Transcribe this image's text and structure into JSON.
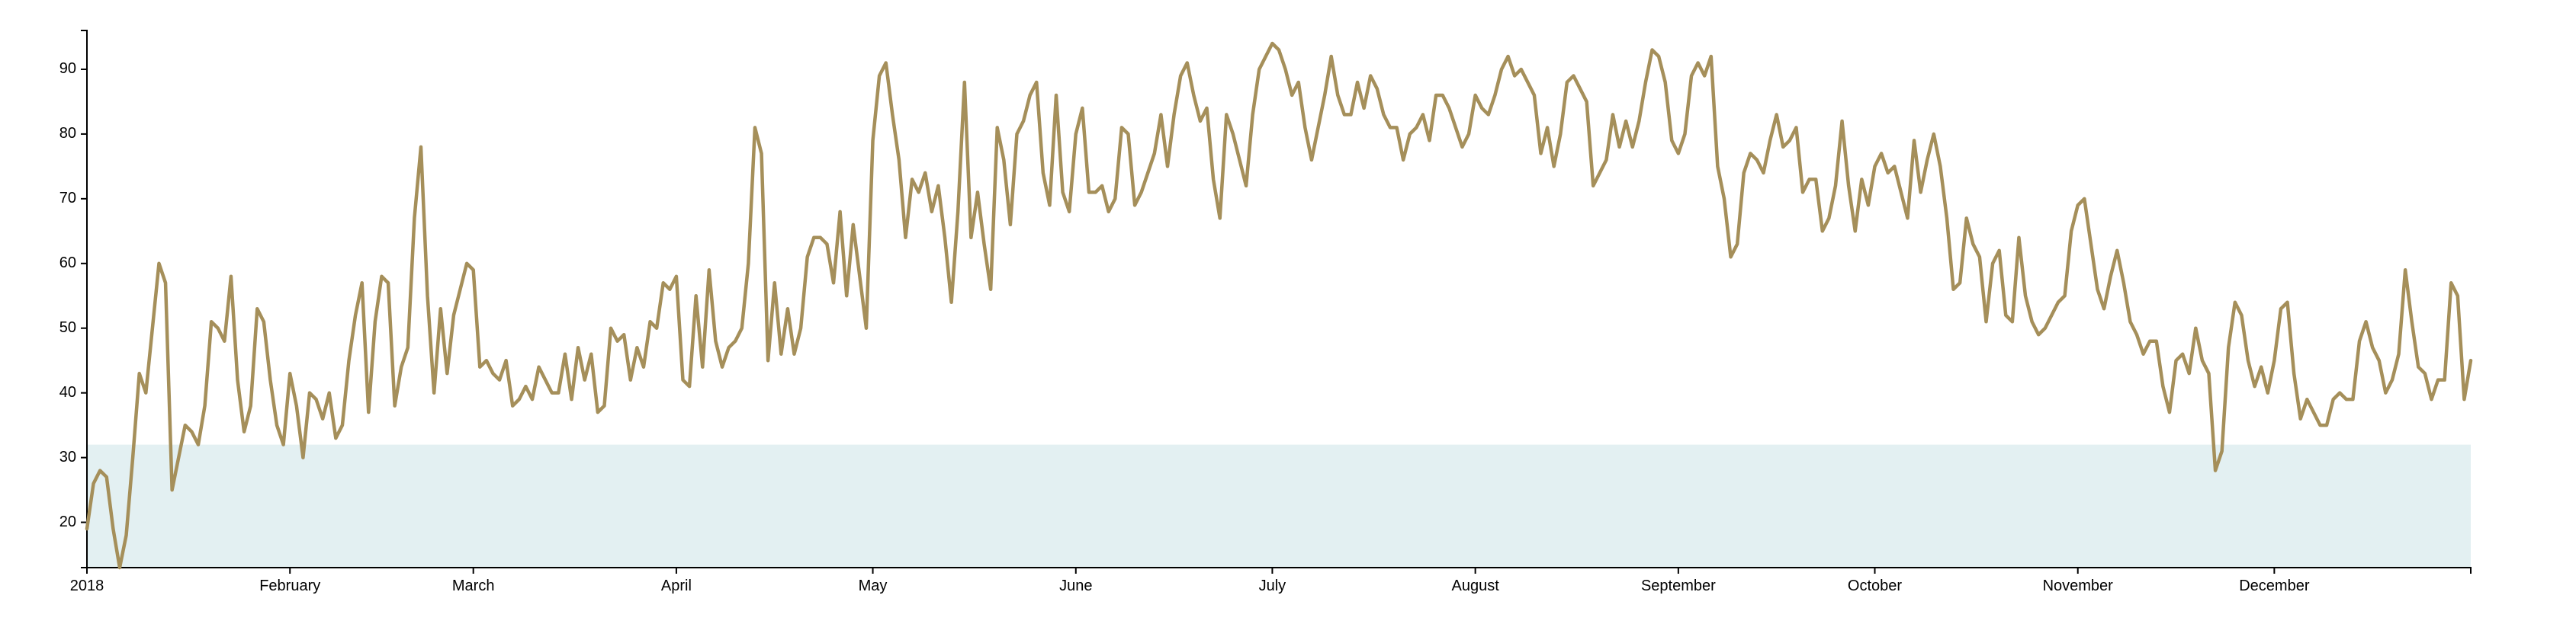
{
  "chart_data": {
    "type": "line",
    "title": "",
    "xlabel": "",
    "ylabel": "",
    "x_domain": [
      "2018-01-01",
      "2018-12-31"
    ],
    "ylim": [
      13,
      96
    ],
    "grid": false,
    "legend": "none",
    "colors": {
      "line": "#A58F5A",
      "band": "#E3F0F2",
      "axis": "#000000"
    },
    "band": {
      "y_from": 13,
      "y_to": 32
    },
    "y_ticks": [
      20,
      30,
      40,
      50,
      60,
      70,
      80,
      90
    ],
    "x_ticks": [
      {
        "date": "2018-01-01",
        "label": "2018"
      },
      {
        "date": "2018-02-01",
        "label": "February"
      },
      {
        "date": "2018-03-01",
        "label": "March"
      },
      {
        "date": "2018-04-01",
        "label": "April"
      },
      {
        "date": "2018-05-01",
        "label": "May"
      },
      {
        "date": "2018-06-01",
        "label": "June"
      },
      {
        "date": "2018-07-01",
        "label": "July"
      },
      {
        "date": "2018-08-01",
        "label": "August"
      },
      {
        "date": "2018-09-01",
        "label": "September"
      },
      {
        "date": "2018-10-01",
        "label": "October"
      },
      {
        "date": "2018-11-01",
        "label": "November"
      },
      {
        "date": "2018-12-01",
        "label": "December"
      }
    ],
    "series": [
      {
        "x_start": "2018-01-01",
        "x_step": "1 day",
        "values": [
          19,
          26,
          28,
          27,
          19,
          13,
          18,
          30,
          43,
          40,
          50,
          60,
          57,
          25,
          30,
          35,
          34,
          32,
          38,
          51,
          50,
          48,
          58,
          42,
          34,
          38,
          53,
          51,
          42,
          35,
          32,
          43,
          38,
          30,
          40,
          39,
          36,
          40,
          33,
          35,
          45,
          52,
          57,
          37,
          51,
          58,
          57,
          38,
          44,
          47,
          67,
          78,
          55,
          40,
          53,
          43,
          52,
          56,
          60,
          59,
          44,
          45,
          43,
          42,
          45,
          38,
          39,
          41,
          39,
          44,
          42,
          40,
          40,
          46,
          39,
          47,
          42,
          46,
          37,
          38,
          50,
          48,
          49,
          42,
          47,
          44,
          51,
          50,
          57,
          56,
          58,
          42,
          41,
          55,
          44,
          59,
          48,
          44,
          47,
          48,
          50,
          60,
          81,
          77,
          45,
          57,
          46,
          53,
          46,
          50,
          61,
          64,
          64,
          63,
          57,
          68,
          55,
          66,
          58,
          50,
          79,
          89,
          91,
          83,
          76,
          64,
          73,
          71,
          74,
          68,
          72,
          64,
          54,
          68,
          88,
          64,
          71,
          63,
          56,
          81,
          76,
          66,
          80,
          82,
          86,
          88,
          74,
          69,
          86,
          71,
          68,
          80,
          84,
          71,
          71,
          72,
          68,
          70,
          81,
          80,
          69,
          71,
          74,
          77,
          83,
          75,
          83,
          89,
          91,
          86,
          82,
          84,
          73,
          67,
          83,
          80,
          76,
          72,
          83,
          90,
          92,
          94,
          93,
          90,
          86,
          88,
          81,
          76,
          81,
          86,
          92,
          86,
          83,
          83,
          88,
          84,
          89,
          87,
          83,
          81,
          81,
          76,
          80,
          81,
          83,
          79,
          86,
          86,
          84,
          81,
          78,
          80,
          86,
          84,
          83,
          86,
          90,
          92,
          89,
          90,
          88,
          86,
          77,
          81,
          75,
          80,
          88,
          89,
          87,
          85,
          72,
          74,
          76,
          83,
          78,
          82,
          78,
          82,
          88,
          93,
          92,
          88,
          79,
          77,
          80,
          89,
          91,
          89,
          92,
          75,
          70,
          61,
          63,
          74,
          77,
          76,
          74,
          79,
          83,
          78,
          79,
          81,
          71,
          73,
          73,
          65,
          67,
          72,
          82,
          72,
          65,
          73,
          69,
          75,
          77,
          74,
          75,
          71,
          67,
          79,
          71,
          76,
          80,
          75,
          67,
          56,
          57,
          67,
          63,
          61,
          51,
          60,
          62,
          52,
          51,
          64,
          55,
          51,
          49,
          50,
          52,
          54,
          55,
          65,
          69,
          70,
          63,
          56,
          53,
          58,
          62,
          57,
          51,
          49,
          46,
          48,
          48,
          41,
          37,
          45,
          46,
          43,
          50,
          45,
          43,
          28,
          31,
          47,
          54,
          52,
          45,
          41,
          44,
          40,
          45,
          53,
          54,
          43,
          36,
          39,
          37,
          35,
          35,
          39,
          40,
          39,
          39,
          48,
          51,
          47,
          45,
          40,
          42,
          46,
          59,
          51,
          44,
          43,
          39,
          42,
          42,
          57,
          55,
          39,
          45
        ]
      }
    ]
  }
}
